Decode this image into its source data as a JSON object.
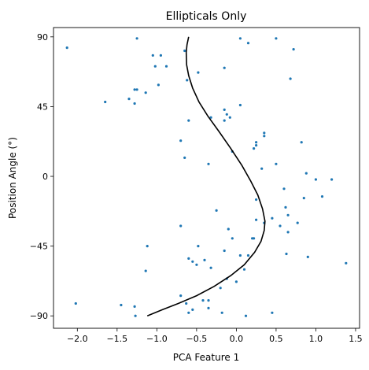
{
  "chart_data": {
    "type": "scatter",
    "title": "Ellipticals Only",
    "xlabel": "PCA Feature 1",
    "ylabel": "Position Angle (°)",
    "xlim": [
      -2.3,
      1.55
    ],
    "ylim": [
      -98,
      96
    ],
    "xticks": [
      -2.0,
      -1.5,
      -1.0,
      -0.5,
      0.0,
      0.5,
      1.0,
      1.5
    ],
    "xtick_labels": [
      "−2.0",
      "−1.5",
      "−1.0",
      "−0.5",
      "0.0",
      "0.5",
      "1.0",
      "1.5"
    ],
    "yticks": [
      -90,
      -45,
      0,
      45,
      90
    ],
    "ytick_labels": [
      "−90",
      "−45",
      "0",
      "45",
      "90"
    ],
    "grid": false,
    "point_color": "#1f77b4",
    "curve_color": "#000000",
    "points": [
      [
        -2.13,
        83
      ],
      [
        -1.25,
        89
      ],
      [
        -1.05,
        78
      ],
      [
        -0.95,
        78
      ],
      [
        -1.02,
        71
      ],
      [
        -0.88,
        71
      ],
      [
        -1.28,
        56
      ],
      [
        -1.25,
        56
      ],
      [
        -1.14,
        54
      ],
      [
        -1.65,
        48
      ],
      [
        -1.35,
        50
      ],
      [
        -1.28,
        47
      ],
      [
        -0.98,
        59
      ],
      [
        -0.65,
        81
      ],
      [
        -0.62,
        62
      ],
      [
        -0.48,
        67
      ],
      [
        -0.15,
        70
      ],
      [
        0.05,
        89
      ],
      [
        0.15,
        86
      ],
      [
        0.5,
        89
      ],
      [
        0.72,
        82
      ],
      [
        0.68,
        63
      ],
      [
        -0.15,
        43
      ],
      [
        -0.12,
        40
      ],
      [
        -0.08,
        38
      ],
      [
        0.05,
        46
      ],
      [
        -0.6,
        36
      ],
      [
        -0.32,
        38
      ],
      [
        -0.15,
        36
      ],
      [
        0.35,
        28
      ],
      [
        0.35,
        26
      ],
      [
        0.25,
        22
      ],
      [
        0.25,
        20
      ],
      [
        0.22,
        18
      ],
      [
        -0.7,
        23
      ],
      [
        -0.05,
        16
      ],
      [
        0.82,
        22
      ],
      [
        -0.65,
        12
      ],
      [
        -0.35,
        8
      ],
      [
        0.32,
        5
      ],
      [
        0.5,
        8
      ],
      [
        0.88,
        2
      ],
      [
        1.0,
        -2
      ],
      [
        1.2,
        -2
      ],
      [
        0.6,
        -8
      ],
      [
        0.85,
        -14
      ],
      [
        1.08,
        -13
      ],
      [
        0.25,
        -15
      ],
      [
        -0.25,
        -22
      ],
      [
        0.62,
        -20
      ],
      [
        0.65,
        -25
      ],
      [
        0.45,
        -27
      ],
      [
        0.35,
        -30
      ],
      [
        0.25,
        -28
      ],
      [
        0.77,
        -30
      ],
      [
        0.65,
        -36
      ],
      [
        0.55,
        -32
      ],
      [
        -0.1,
        -34
      ],
      [
        -0.7,
        -32
      ],
      [
        0.22,
        -40
      ],
      [
        0.2,
        -40
      ],
      [
        -0.05,
        -40
      ],
      [
        -1.12,
        -45
      ],
      [
        -0.48,
        -45
      ],
      [
        -0.15,
        -48
      ],
      [
        0.05,
        -51
      ],
      [
        0.15,
        -51
      ],
      [
        0.63,
        -50
      ],
      [
        0.9,
        -52
      ],
      [
        1.38,
        -56
      ],
      [
        -0.6,
        -53
      ],
      [
        -0.4,
        -54
      ],
      [
        -0.5,
        -57
      ],
      [
        -0.55,
        -55
      ],
      [
        -0.32,
        -59
      ],
      [
        0.1,
        -60
      ],
      [
        -0.12,
        -66
      ],
      [
        -1.14,
        -61
      ],
      [
        0.0,
        -68
      ],
      [
        -0.2,
        -72
      ],
      [
        -0.7,
        -77
      ],
      [
        -0.63,
        -82
      ],
      [
        -0.35,
        -80
      ],
      [
        -0.42,
        -80
      ],
      [
        -2.02,
        -82
      ],
      [
        -1.45,
        -83
      ],
      [
        -1.28,
        -84
      ],
      [
        -0.55,
        -86
      ],
      [
        -0.35,
        -85
      ],
      [
        -0.6,
        -88
      ],
      [
        -1.27,
        -90
      ],
      [
        -0.18,
        -88
      ],
      [
        0.12,
        -90
      ],
      [
        0.45,
        -88
      ]
    ],
    "curve": [
      [
        -0.6,
        90
      ],
      [
        -0.62,
        85
      ],
      [
        -0.63,
        80
      ],
      [
        -0.625,
        72
      ],
      [
        -0.6,
        65
      ],
      [
        -0.55,
        57
      ],
      [
        -0.47,
        48
      ],
      [
        -0.36,
        39
      ],
      [
        -0.22,
        29
      ],
      [
        -0.07,
        18
      ],
      [
        0.07,
        7
      ],
      [
        0.18,
        -3
      ],
      [
        0.27,
        -12
      ],
      [
        0.33,
        -21
      ],
      [
        0.36,
        -29
      ],
      [
        0.35,
        -35
      ],
      [
        0.31,
        -42
      ],
      [
        0.23,
        -49
      ],
      [
        0.1,
        -57
      ],
      [
        -0.07,
        -64
      ],
      [
        -0.28,
        -71
      ],
      [
        -0.5,
        -77
      ],
      [
        -0.73,
        -82
      ],
      [
        -0.93,
        -86
      ],
      [
        -1.12,
        -90
      ]
    ]
  }
}
